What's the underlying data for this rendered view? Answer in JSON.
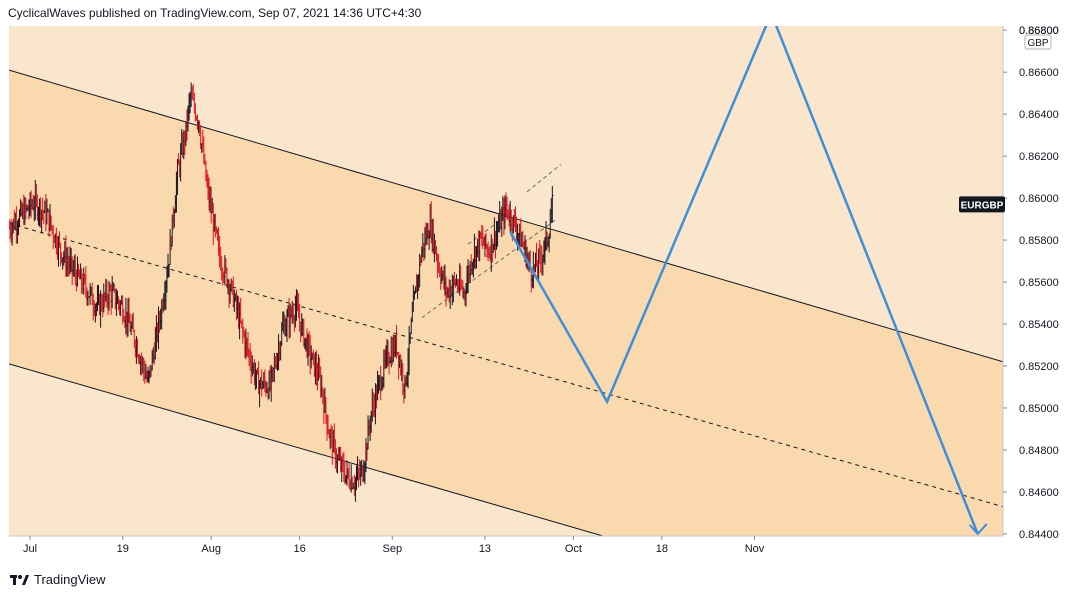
{
  "header": {
    "publish_line": "CyclicalWaves published on TradingView.com, Sep 07, 2021 14:36 UTC+4:30"
  },
  "footer": {
    "brand": "TradingView",
    "logo_icon": "tradingview-logo-icon"
  },
  "colors": {
    "background": "#fae5cd",
    "channel_fill": "#fbd9ae",
    "candle_up": "#131722",
    "candle_down": "#e0161f",
    "projection": "#3d8fd9",
    "channel_line": "#131722",
    "axis_bg": "#ffffff",
    "grid": "#f0d9bd"
  },
  "chart_data": {
    "type": "candlestick",
    "symbol_label": "EURGBP",
    "currency_label": "GBP",
    "x_axis_ticks": [
      "Jul",
      "19",
      "Aug",
      "16",
      "Sep",
      "13",
      "Oct",
      "18",
      "Nov"
    ],
    "y_axis_ticks": [
      "0.86800",
      "0.86600",
      "0.86400",
      "0.86200",
      "0.86000",
      "0.85800",
      "0.85600",
      "0.85400",
      "0.85200",
      "0.85000",
      "0.84800",
      "0.84600",
      "0.84400"
    ],
    "ylim": [
      0.8439,
      0.8682
    ],
    "x_range_index": [
      0,
      236
    ],
    "last_price": 0.8597,
    "price_close_path": [
      {
        "i": 0,
        "p": 0.8586
      },
      {
        "i": 3,
        "p": 0.8592
      },
      {
        "i": 6,
        "p": 0.8598
      },
      {
        "i": 9,
        "p": 0.8592
      },
      {
        "i": 12,
        "p": 0.8576
      },
      {
        "i": 15,
        "p": 0.8566
      },
      {
        "i": 18,
        "p": 0.8558
      },
      {
        "i": 21,
        "p": 0.8548
      },
      {
        "i": 24,
        "p": 0.8555
      },
      {
        "i": 27,
        "p": 0.8548
      },
      {
        "i": 30,
        "p": 0.8532
      },
      {
        "i": 33,
        "p": 0.8512
      },
      {
        "i": 36,
        "p": 0.8545
      },
      {
        "i": 38,
        "p": 0.8572
      },
      {
        "i": 40,
        "p": 0.8612
      },
      {
        "i": 42,
        "p": 0.8632
      },
      {
        "i": 43,
        "p": 0.8648
      },
      {
        "i": 45,
        "p": 0.8638
      },
      {
        "i": 47,
        "p": 0.8605
      },
      {
        "i": 50,
        "p": 0.8572
      },
      {
        "i": 53,
        "p": 0.8555
      },
      {
        "i": 56,
        "p": 0.8532
      },
      {
        "i": 59,
        "p": 0.8512
      },
      {
        "i": 62,
        "p": 0.851
      },
      {
        "i": 65,
        "p": 0.8538
      },
      {
        "i": 68,
        "p": 0.8548
      },
      {
        "i": 71,
        "p": 0.8528
      },
      {
        "i": 74,
        "p": 0.8512
      },
      {
        "i": 76,
        "p": 0.8488
      },
      {
        "i": 78,
        "p": 0.8475
      },
      {
        "i": 80,
        "p": 0.8468
      },
      {
        "i": 82,
        "p": 0.8465
      },
      {
        "i": 84,
        "p": 0.847
      },
      {
        "i": 86,
        "p": 0.8498
      },
      {
        "i": 88,
        "p": 0.8512
      },
      {
        "i": 90,
        "p": 0.8525
      },
      {
        "i": 92,
        "p": 0.853
      },
      {
        "i": 94,
        "p": 0.851
      },
      {
        "i": 96,
        "p": 0.8548
      },
      {
        "i": 98,
        "p": 0.8575
      },
      {
        "i": 100,
        "p": 0.8588
      },
      {
        "i": 102,
        "p": 0.8568
      },
      {
        "i": 104,
        "p": 0.8555
      },
      {
        "i": 106,
        "p": 0.856
      },
      {
        "i": 108,
        "p": 0.8555
      },
      {
        "i": 110,
        "p": 0.8572
      },
      {
        "i": 112,
        "p": 0.858
      },
      {
        "i": 114,
        "p": 0.8575
      },
      {
        "i": 116,
        "p": 0.8585
      },
      {
        "i": 118,
        "p": 0.8595
      },
      {
        "i": 120,
        "p": 0.8588
      },
      {
        "i": 122,
        "p": 0.8578
      },
      {
        "i": 124,
        "p": 0.8565
      },
      {
        "i": 126,
        "p": 0.857
      },
      {
        "i": 128,
        "p": 0.8582
      },
      {
        "i": 129,
        "p": 0.8597
      }
    ],
    "channel_lines": [
      {
        "name": "upper",
        "style": "solid",
        "from": {
          "i": 0,
          "p": 0.8661
        },
        "to": {
          "i": 236,
          "p": 0.8522
        }
      },
      {
        "name": "middle",
        "style": "dashed",
        "from": {
          "i": 0,
          "p": 0.8588
        },
        "to": {
          "i": 236,
          "p": 0.8453
        }
      },
      {
        "name": "lower",
        "style": "solid",
        "from": {
          "i": 0,
          "p": 0.8521
        },
        "to": {
          "i": 141,
          "p": 0.8439
        }
      }
    ],
    "mini_channel_lines": [
      {
        "from": {
          "i": 109,
          "p": 0.8578
        },
        "to": {
          "i": 121,
          "p": 0.8596
        }
      },
      {
        "from": {
          "i": 123,
          "p": 0.8603
        },
        "to": {
          "i": 131,
          "p": 0.8616
        }
      },
      {
        "from": {
          "i": 98,
          "p": 0.8543
        },
        "to": {
          "i": 130,
          "p": 0.859
        }
      }
    ],
    "projection_path": [
      {
        "i": 119,
        "p": 0.8584
      },
      {
        "i": 142,
        "p": 0.8503
      },
      {
        "i": 181,
        "p": 0.8688
      },
      {
        "i": 230,
        "p": 0.844
      }
    ],
    "projection_arrowhead": {
      "i": 230,
      "p": 0.844
    }
  }
}
